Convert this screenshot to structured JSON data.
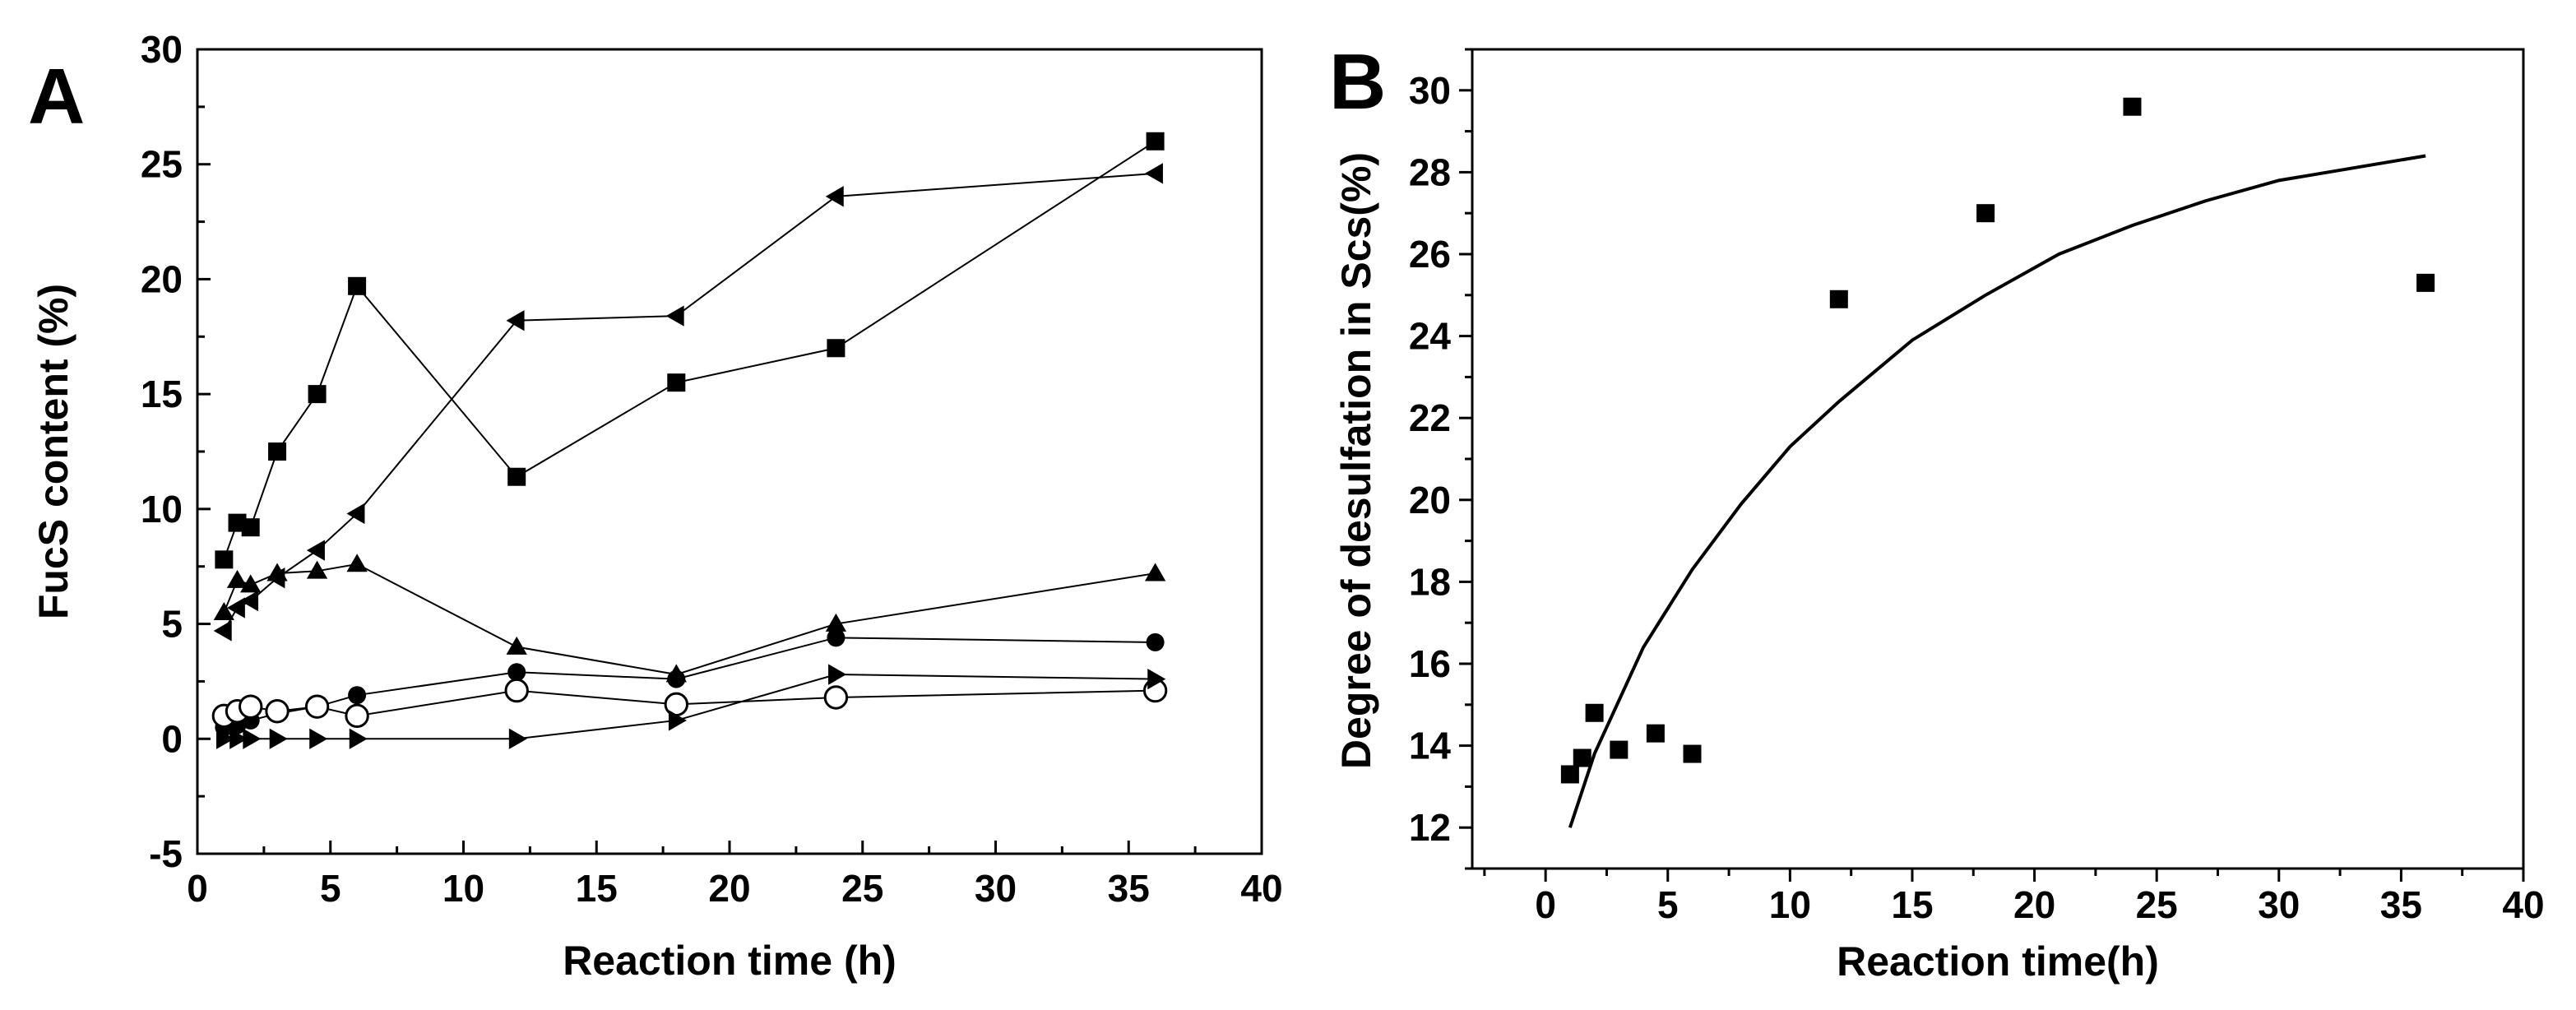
{
  "chart_data": [
    {
      "panel_label": "A",
      "type": "line",
      "xlabel": "Reaction time (h)",
      "ylabel": "FucS content (%)",
      "xlim": [
        0,
        40
      ],
      "ylim": [
        -5,
        30
      ],
      "xticks": [
        0,
        5,
        10,
        15,
        20,
        25,
        30,
        35,
        40
      ],
      "yticks": [
        -5,
        0,
        5,
        10,
        15,
        20,
        25,
        30
      ],
      "x": [
        1,
        1.5,
        2,
        3,
        4.5,
        6,
        12,
        18,
        24,
        36
      ],
      "series": [
        {
          "name": "filled-square",
          "marker": "square",
          "values": [
            7.8,
            9.4,
            9.2,
            12.5,
            15.0,
            19.7,
            11.4,
            15.5,
            17.0,
            26.0
          ]
        },
        {
          "name": "filled-left-triangle",
          "marker": "triangle-left",
          "values": [
            4.7,
            5.7,
            6.0,
            7.0,
            8.2,
            9.8,
            18.2,
            18.4,
            23.6,
            24.6
          ]
        },
        {
          "name": "filled-up-triangle",
          "marker": "triangle-up",
          "values": [
            5.5,
            6.9,
            6.7,
            7.2,
            7.3,
            7.6,
            4.0,
            2.8,
            5.0,
            7.2
          ]
        },
        {
          "name": "filled-circle",
          "marker": "circle",
          "values": [
            0.5,
            0.6,
            0.8,
            1.1,
            1.4,
            1.9,
            2.9,
            2.6,
            4.4,
            4.2
          ]
        },
        {
          "name": "open-circle",
          "marker": "open-circle",
          "values": [
            1.0,
            1.2,
            1.4,
            1.2,
            1.4,
            1.0,
            2.1,
            1.5,
            1.8,
            2.1
          ]
        },
        {
          "name": "filled-right-triangle",
          "marker": "triangle-right",
          "values": [
            0,
            0,
            0,
            0,
            0,
            0,
            0,
            0.8,
            2.8,
            2.6
          ]
        }
      ]
    },
    {
      "panel_label": "B",
      "type": "scatter",
      "xlabel": "Reaction time(h)",
      "ylabel": "Degree of desulfation in Scs(%)",
      "xlim": [
        -3,
        40
      ],
      "ylim": [
        11,
        31
      ],
      "xticks": [
        0,
        5,
        10,
        15,
        20,
        25,
        30,
        35,
        40
      ],
      "yticks": [
        12,
        14,
        16,
        18,
        20,
        22,
        24,
        26,
        28,
        30
      ],
      "points": {
        "x": [
          1,
          1.5,
          2,
          3,
          4.5,
          6,
          12,
          18,
          24,
          36
        ],
        "y": [
          13.3,
          13.7,
          14.8,
          13.9,
          14.3,
          13.8,
          24.9,
          27.0,
          29.6,
          25.3
        ]
      },
      "fit": {
        "x": [
          1,
          2,
          4,
          6,
          8,
          10,
          12,
          15,
          18,
          21,
          24,
          27,
          30,
          33,
          36
        ],
        "y": [
          12.0,
          13.8,
          16.4,
          18.3,
          19.9,
          21.3,
          22.4,
          23.9,
          25.0,
          26.0,
          26.7,
          27.3,
          27.8,
          28.1,
          28.4
        ]
      }
    }
  ]
}
